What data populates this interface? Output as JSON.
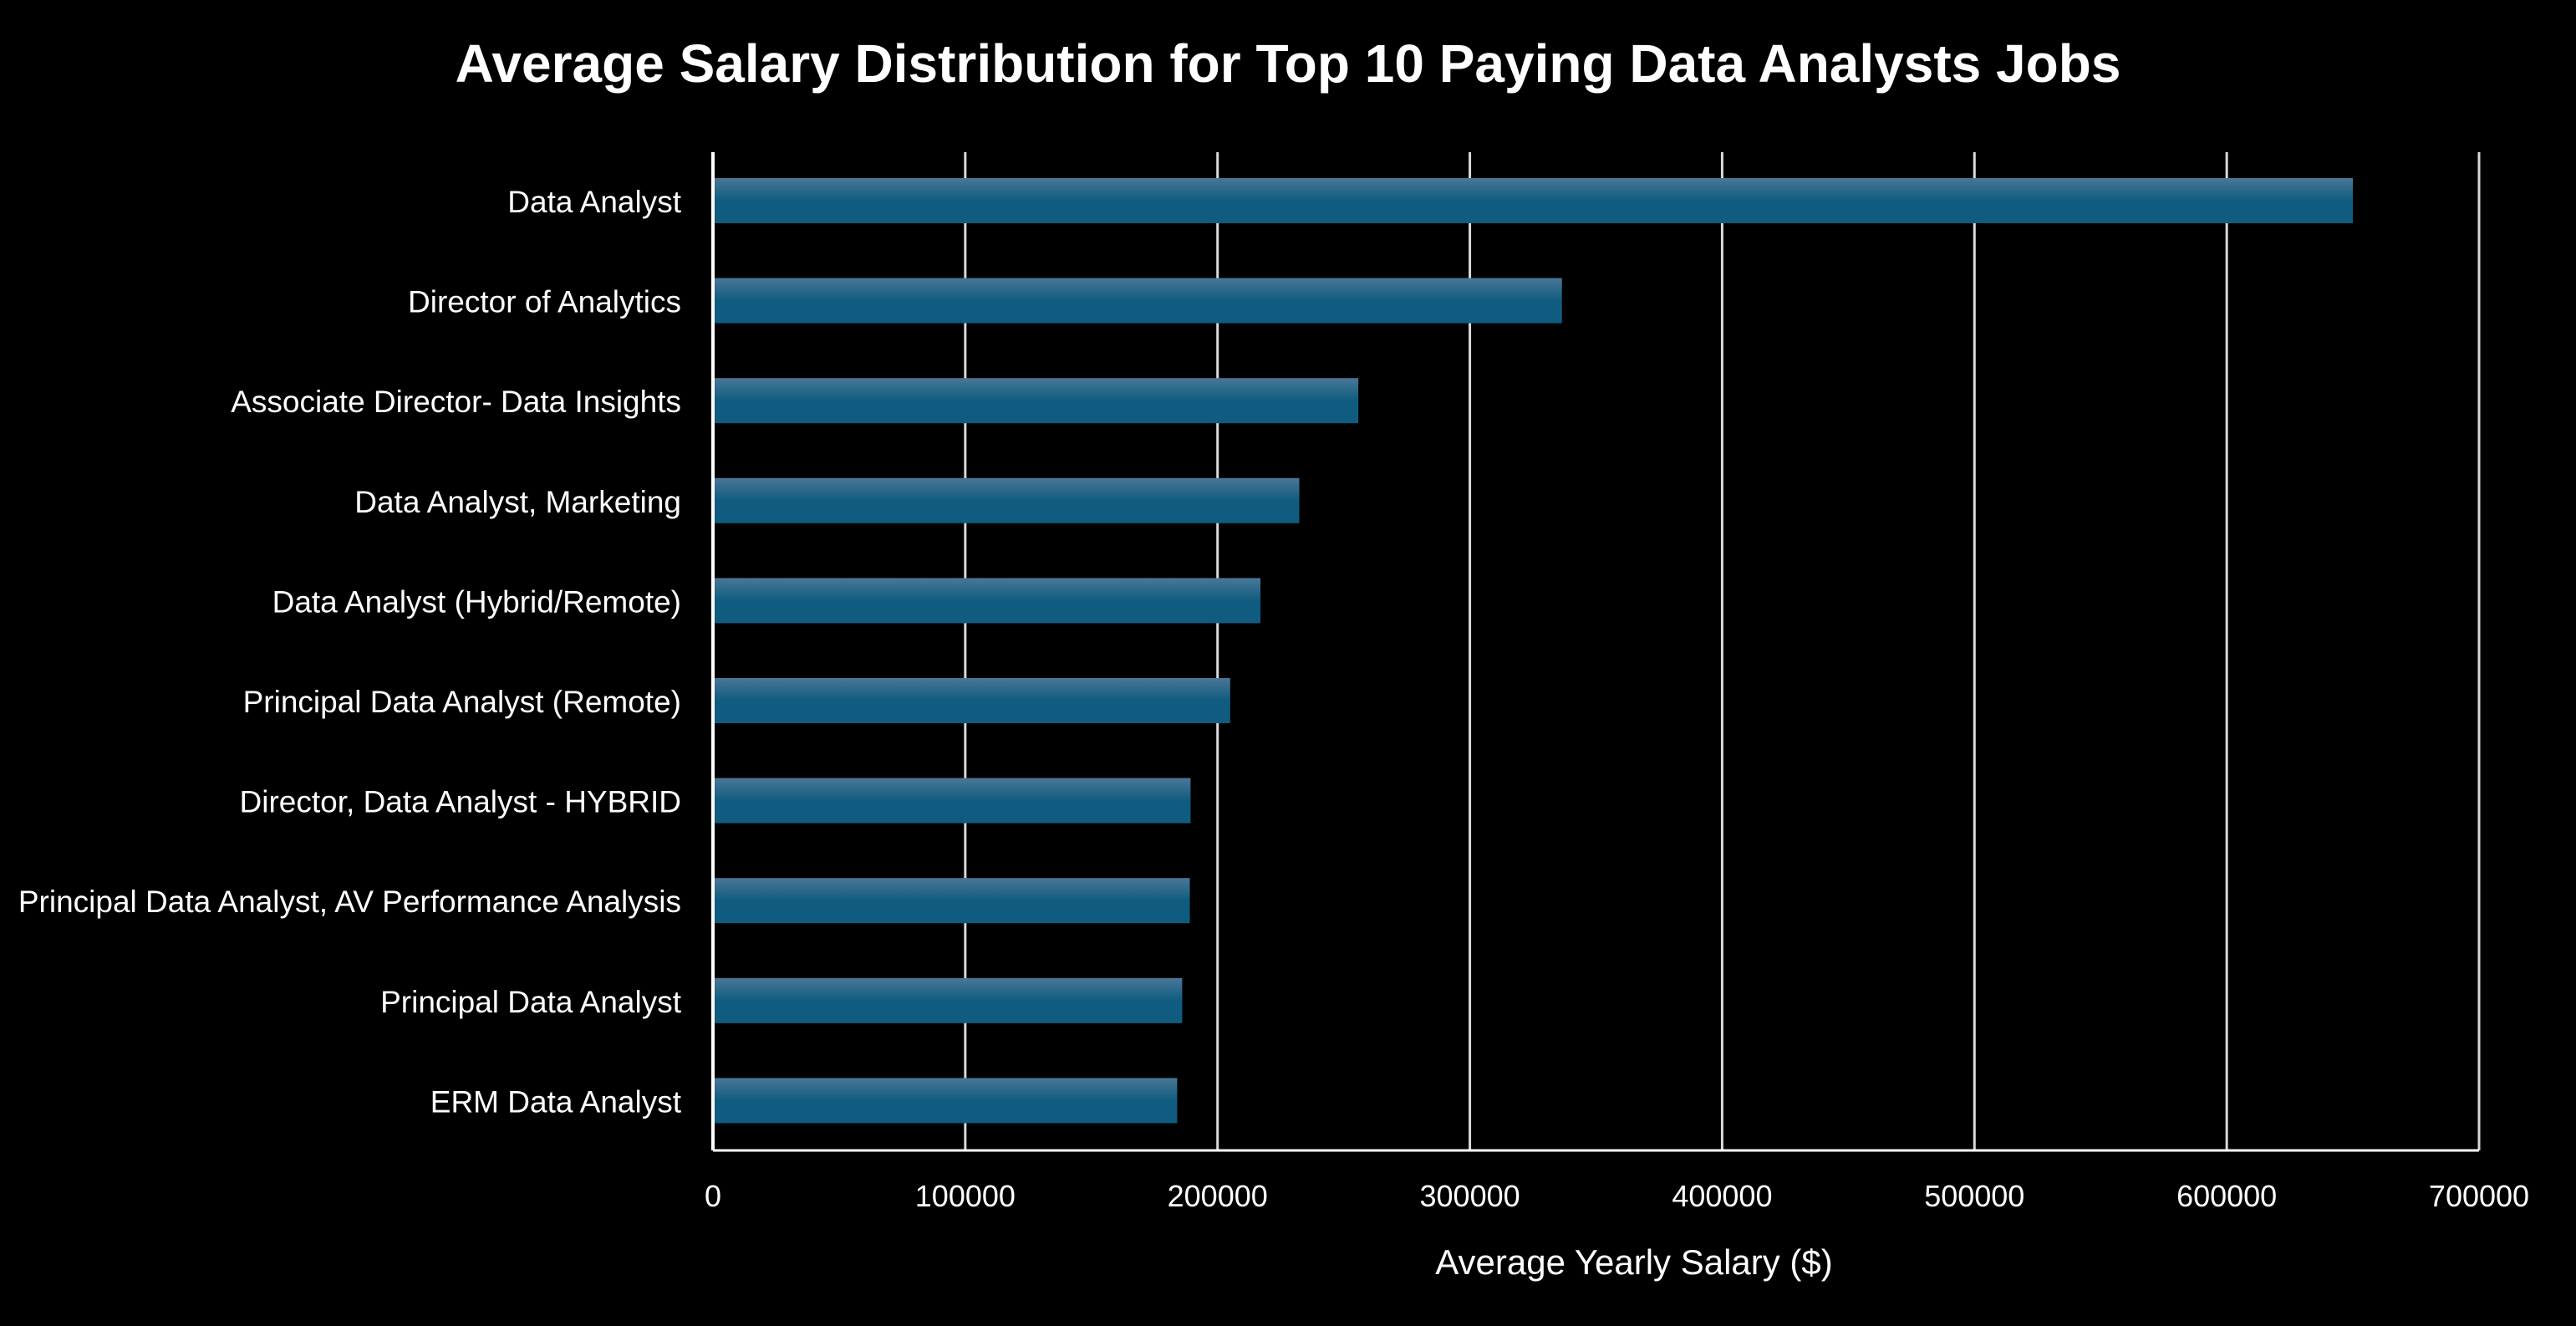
{
  "chart_data": {
    "type": "bar",
    "orientation": "horizontal",
    "title": "Average Salary Distribution for Top 10 Paying Data Analysts Jobs",
    "xlabel": "Average Yearly Salary ($)",
    "ylabel": "",
    "xlim": [
      0,
      700000
    ],
    "x_ticks": [
      "0",
      "100000",
      "200000",
      "300000",
      "400000",
      "500000",
      "600000",
      "700000"
    ],
    "grid": "vertical",
    "legend": "none",
    "categories": [
      "Data Analyst",
      "Director of Analytics",
      "Associate Director- Data Insights",
      "Data Analyst, Marketing",
      "Data Analyst (Hybrid/Remote)",
      "Principal Data Analyst (Remote)",
      "Director, Data Analyst - HYBRID",
      "Principal Data Analyst, AV Performance Analysis",
      "Principal Data Analyst",
      "ERM Data Analyst"
    ],
    "values": [
      650000,
      336500,
      255800,
      232400,
      217000,
      205000,
      189300,
      189000,
      186000,
      184000
    ]
  },
  "colors": {
    "background": "#000000",
    "bar_top": "#4a7796",
    "bar_bottom": "#0f5c80",
    "text": "#ffffff",
    "grid": "#d9d9d9",
    "axis": "#ffffff"
  }
}
